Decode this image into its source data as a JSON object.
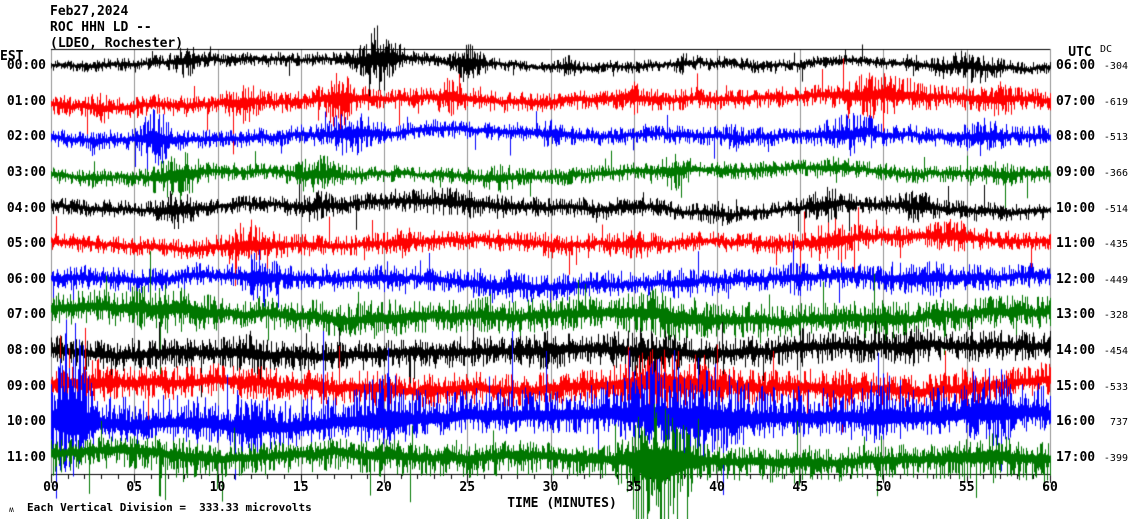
{
  "header": {
    "date": "Feb27,2024",
    "station": "ROC HHN LD --",
    "network": "(LDEO, Rochester)"
  },
  "axes": {
    "left_title": "EST",
    "right_title": "UTC",
    "dc_title": "DC",
    "bottom_ticks": [
      "00",
      "05",
      "10",
      "15",
      "20",
      "25",
      "30",
      "35",
      "40",
      "45",
      "50",
      "55",
      "60"
    ],
    "bottom_label": "TIME (MINUTES)"
  },
  "footer": {
    "marker": "ʍ",
    "text": "Each Vertical Division =  333.33 microvolts"
  },
  "colors": {
    "black": "#000000",
    "red": "#ff0000",
    "blue": "#0000ff",
    "green": "#007700",
    "grid": "#909090",
    "axis": "#000000"
  },
  "chart_data": {
    "type": "line",
    "description": "12-row helicorder seismogram; each row is one hour (60 minutes) of ground-motion trace. Envelope values are estimated half-amplitudes in pixels.",
    "x_axis": {
      "label": "TIME (MINUTES)",
      "range": [
        0,
        60
      ],
      "tick_interval_minutes": 5
    },
    "vertical_division_microvolts": 333.33,
    "rows": [
      {
        "est": "00:00",
        "utc": "06:00",
        "dc": "-304",
        "color": "black",
        "seed": 101,
        "wander": 4,
        "skew_up": 1,
        "skew_down": 1,
        "env5": [
          5,
          6,
          6,
          6,
          6,
          6,
          5,
          5,
          6,
          5,
          5,
          7,
          6
        ],
        "bursts": [
          [
            8,
            0.8,
            9
          ],
          [
            19.7,
            1.1,
            22
          ],
          [
            25,
            0.8,
            12
          ],
          [
            31,
            0.6,
            5
          ],
          [
            38,
            0.5,
            4
          ],
          [
            55,
            1.5,
            8
          ]
        ]
      },
      {
        "est": "01:00",
        "utc": "07:00",
        "dc": "-619",
        "color": "red",
        "seed": 202,
        "wander": 4,
        "skew_up": 1,
        "skew_down": 1,
        "env5": [
          9,
          9,
          9,
          9,
          9,
          9,
          9,
          9,
          9,
          9,
          10,
          10,
          9
        ],
        "bursts": [
          [
            3,
            0.5,
            4
          ],
          [
            11.5,
            0.8,
            9
          ],
          [
            17.3,
            0.9,
            16
          ],
          [
            24,
            0.7,
            8
          ],
          [
            35,
            0.6,
            5
          ],
          [
            49.5,
            2.2,
            10
          ],
          [
            57,
            0.9,
            6
          ]
        ]
      },
      {
        "est": "02:00",
        "utc": "08:00",
        "dc": "-513",
        "color": "blue",
        "seed": 303,
        "wander": 4,
        "skew_up": 1,
        "skew_down": 1,
        "env5": [
          8,
          8,
          8,
          8,
          8,
          8,
          8,
          8,
          8,
          8,
          8,
          9,
          9
        ],
        "bursts": [
          [
            6.3,
            0.9,
            17
          ],
          [
            18,
            1.3,
            12
          ],
          [
            30,
            0.7,
            5
          ],
          [
            41,
            0.6,
            4
          ],
          [
            48,
            1.6,
            10
          ],
          [
            56,
            0.9,
            8
          ]
        ]
      },
      {
        "est": "03:00",
        "utc": "09:00",
        "dc": "-366",
        "color": "green",
        "seed": 404,
        "wander": 4,
        "skew_up": 1,
        "skew_down": 1.1,
        "env5": [
          7,
          7,
          7,
          7,
          7,
          7,
          7,
          7,
          7,
          7,
          7,
          7,
          7
        ],
        "bursts": [
          [
            7.5,
            1.3,
            13
          ],
          [
            16,
            1.2,
            10
          ],
          [
            27,
            0.8,
            5
          ],
          [
            37.5,
            0.9,
            8
          ],
          [
            47,
            0.8,
            5
          ],
          [
            57,
            0.7,
            5
          ]
        ]
      },
      {
        "est": "04:00",
        "utc": "10:00",
        "dc": "-514",
        "color": "black",
        "seed": 505,
        "wander": 6,
        "skew_up": 1,
        "skew_down": 1,
        "env5": [
          7,
          7,
          7,
          8,
          8,
          9,
          9,
          8,
          7,
          7,
          8,
          8,
          7
        ],
        "bursts": [
          [
            7.5,
            1.0,
            10
          ],
          [
            16,
            0.8,
            6
          ],
          [
            24,
            2.5,
            4
          ],
          [
            40,
            0.7,
            4
          ],
          [
            46.5,
            1.1,
            9
          ],
          [
            52,
            1.0,
            6
          ]
        ]
      },
      {
        "est": "05:00",
        "utc": "11:00",
        "dc": "-435",
        "color": "red",
        "seed": 606,
        "wander": 4,
        "skew_up": 1,
        "skew_down": 1,
        "env5": [
          8,
          8,
          9,
          9,
          9,
          9,
          9,
          9,
          8,
          9,
          9,
          9,
          8
        ],
        "bursts": [
          [
            12,
            1.3,
            13
          ],
          [
            21,
            0.8,
            5
          ],
          [
            30,
            0.7,
            3
          ],
          [
            35,
            0.8,
            5
          ],
          [
            47,
            1.3,
            10
          ],
          [
            54,
            1.2,
            6
          ]
        ]
      },
      {
        "est": "06:00",
        "utc": "12:00",
        "dc": "-449",
        "color": "blue",
        "seed": 707,
        "wander": 4,
        "skew_up": 1,
        "skew_down": 1,
        "env5": [
          10,
          10,
          10,
          10,
          10,
          10,
          11,
          10,
          10,
          10,
          11,
          11,
          10
        ],
        "bursts": [
          [
            12.5,
            1.0,
            14
          ],
          [
            20,
            0.8,
            4
          ],
          [
            27,
            2.2,
            4
          ],
          [
            38,
            0.8,
            4
          ],
          [
            45,
            1.0,
            5
          ],
          [
            52,
            1.5,
            6
          ]
        ]
      },
      {
        "est": "07:00",
        "utc": "13:00",
        "dc": "-328",
        "color": "green",
        "seed": 808,
        "wander": 5,
        "skew_up": 1,
        "skew_down": 1,
        "env5": [
          14,
          15,
          14,
          14,
          14,
          15,
          14,
          15,
          14,
          14,
          14,
          14,
          14
        ],
        "bursts": [
          [
            7,
            2.2,
            6
          ],
          [
            20,
            1.2,
            4
          ],
          [
            37,
            2.2,
            7
          ],
          [
            50,
            1.2,
            4
          ]
        ]
      },
      {
        "est": "08:00",
        "utc": "14:00",
        "dc": "-454",
        "color": "black",
        "seed": 909,
        "wander": 5,
        "skew_up": 1,
        "skew_down": 1,
        "env5": [
          13,
          13,
          13,
          13,
          13,
          13,
          13,
          14,
          13,
          13,
          13,
          13,
          13
        ],
        "bursts": [
          [
            12,
            0.9,
            6
          ],
          [
            30,
            0.9,
            4
          ],
          [
            36,
            1.6,
            9
          ],
          [
            45,
            0.9,
            4
          ],
          [
            52,
            0.9,
            4
          ]
        ]
      },
      {
        "est": "09:00",
        "utc": "15:00",
        "dc": "-533",
        "color": "red",
        "seed": 1010,
        "wander": 5,
        "skew_up": 1,
        "skew_down": 1,
        "env5": [
          14,
          14,
          14,
          14,
          14,
          14,
          14,
          15,
          15,
          14,
          14,
          14,
          14
        ],
        "bursts": [
          [
            2.5,
            0.9,
            8
          ],
          [
            20,
            1.0,
            4
          ],
          [
            37,
            2.6,
            14
          ],
          [
            47,
            1.0,
            6
          ],
          [
            55,
            0.9,
            5
          ]
        ]
      },
      {
        "est": "10:00",
        "utc": "16:00",
        "dc": "737",
        "color": "blue",
        "seed": 1111,
        "wander": 5,
        "skew_up": 1.45,
        "skew_down": 0.85,
        "env5": [
          19,
          17,
          17,
          17,
          18,
          17,
          17,
          18,
          19,
          17,
          17,
          18,
          17
        ],
        "bursts": [
          [
            1.2,
            1.0,
            45
          ],
          [
            12,
            1.0,
            11
          ],
          [
            20,
            1.1,
            14
          ],
          [
            38,
            3.2,
            20
          ],
          [
            50,
            1.1,
            11
          ],
          [
            56.5,
            1.3,
            14
          ]
        ]
      },
      {
        "est": "11:00",
        "utc": "17:00",
        "dc": "-399",
        "color": "green",
        "seed": 1212,
        "wander": 5,
        "skew_up": 0.9,
        "skew_down": 1.25,
        "env5": [
          13,
          13,
          13,
          13,
          13,
          13,
          13,
          13,
          13,
          13,
          13,
          14,
          15
        ],
        "bursts": [
          [
            8,
            0.8,
            4
          ],
          [
            20,
            0.9,
            3
          ],
          [
            28,
            0.7,
            2
          ],
          [
            36.5,
            1.6,
            50
          ],
          [
            45,
            0.9,
            4
          ],
          [
            56,
            1.6,
            7
          ]
        ]
      }
    ]
  }
}
